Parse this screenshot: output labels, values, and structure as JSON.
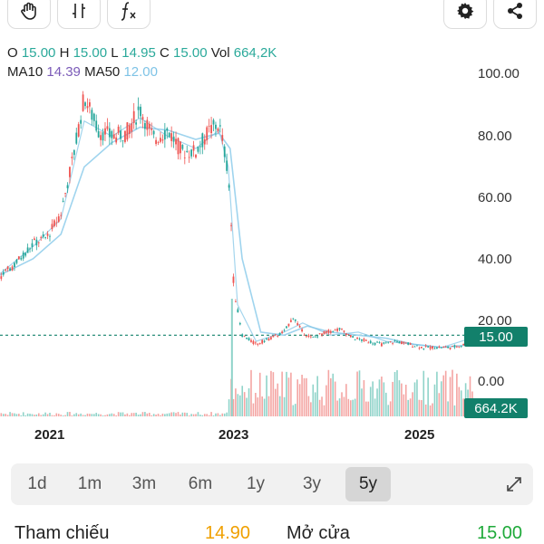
{
  "toolbar": {
    "left_buttons": [
      "hand-icon",
      "candle-icon",
      "function-icon"
    ],
    "right_buttons": [
      "gear-icon",
      "share-icon"
    ]
  },
  "ohlc": {
    "o_label": "O",
    "o_value": "15.00",
    "h_label": "H",
    "h_value": "15.00",
    "l_label": "L",
    "l_value": "14.95",
    "c_label": "C",
    "c_value": "15.00",
    "vol_label": "Vol",
    "vol_value": "664,2K"
  },
  "ma": {
    "ma10_label": "MA10",
    "ma10_value": "14.39",
    "ma50_label": "MA50",
    "ma50_value": "12.00"
  },
  "price_tag": "15.00",
  "volume_tag": "664.2K",
  "colors": {
    "teal": "#2aa99a",
    "purple": "#7b5bb8",
    "light_blue": "#7ec3e6",
    "up": "#26a69a",
    "down": "#ef5350",
    "tag": "#12806b",
    "green_value": "#1faa3a",
    "orange_value": "#f0a000"
  },
  "chart_data": {
    "type": "line",
    "y_ticks": [
      "100.00",
      "80.00",
      "60.00",
      "40.00",
      "20.00",
      "0.00"
    ],
    "x_ticks": [
      "2021",
      "2023",
      "2025"
    ],
    "ylim": [
      0,
      100
    ],
    "current_price": 15.0,
    "series": [
      {
        "name": "Price",
        "x": [
          2019.6,
          2019.8,
          2020.0,
          2020.2,
          2020.4,
          2020.6,
          2020.8,
          2020.95,
          2021.1,
          2021.25,
          2021.35,
          2021.5,
          2021.65,
          2021.8,
          2021.95,
          2022.1,
          2022.25,
          2022.4,
          2022.55,
          2022.7,
          2022.8,
          2022.88,
          2022.92,
          2022.96,
          2023.05,
          2023.2,
          2023.35,
          2023.5,
          2023.6,
          2023.7,
          2023.8,
          2023.95,
          2024.1,
          2024.25,
          2024.4,
          2024.55,
          2024.7,
          2024.85,
          2025.0,
          2025.15,
          2025.3,
          2025.45,
          2025.55
        ],
        "values": [
          34,
          36,
          35,
          34,
          33,
          38,
          45,
          47,
          55,
          76,
          93,
          82,
          80,
          81,
          89,
          79,
          82,
          75,
          75,
          82,
          84,
          72,
          60,
          30,
          15,
          12,
          14,
          16,
          21,
          16,
          14,
          16,
          17,
          14,
          13,
          12,
          13,
          12,
          11,
          11,
          11,
          12,
          15
        ]
      },
      {
        "name": "MA10",
        "x": [
          2019.6,
          2020.0,
          2020.4,
          2020.8,
          2021.1,
          2021.35,
          2021.65,
          2021.95,
          2022.25,
          2022.55,
          2022.8,
          2022.9,
          2023.0,
          2023.2,
          2023.5,
          2023.7,
          2024.0,
          2024.3,
          2024.6,
          2024.9,
          2025.2,
          2025.55
        ],
        "values": [
          34,
          35,
          34,
          44,
          53,
          85,
          80,
          86,
          80,
          76,
          82,
          70,
          25,
          13,
          16,
          19,
          15,
          16,
          13,
          12,
          11,
          14.39
        ]
      },
      {
        "name": "MA50",
        "x": [
          2019.6,
          2020.0,
          2020.4,
          2020.8,
          2021.1,
          2021.35,
          2021.65,
          2021.95,
          2022.25,
          2022.55,
          2022.8,
          2022.92,
          2023.05,
          2023.25,
          2023.5,
          2023.75,
          2024.0,
          2024.3,
          2024.6,
          2024.9,
          2025.2,
          2025.55
        ],
        "values": [
          30,
          34,
          34,
          40,
          48,
          70,
          78,
          83,
          82,
          79,
          81,
          76,
          40,
          16,
          15,
          18,
          16,
          15,
          14,
          12,
          11,
          12.0
        ]
      }
    ]
  },
  "ranges": {
    "items": [
      "1d",
      "1m",
      "3m",
      "6m",
      "1y",
      "3y",
      "5y"
    ],
    "active": "5y",
    "expand_icon": "expand-icon"
  },
  "bottom": {
    "label1": "Tham chiếu",
    "value1": "14.90",
    "label2": "Mở cửa",
    "value2": "15.00"
  }
}
